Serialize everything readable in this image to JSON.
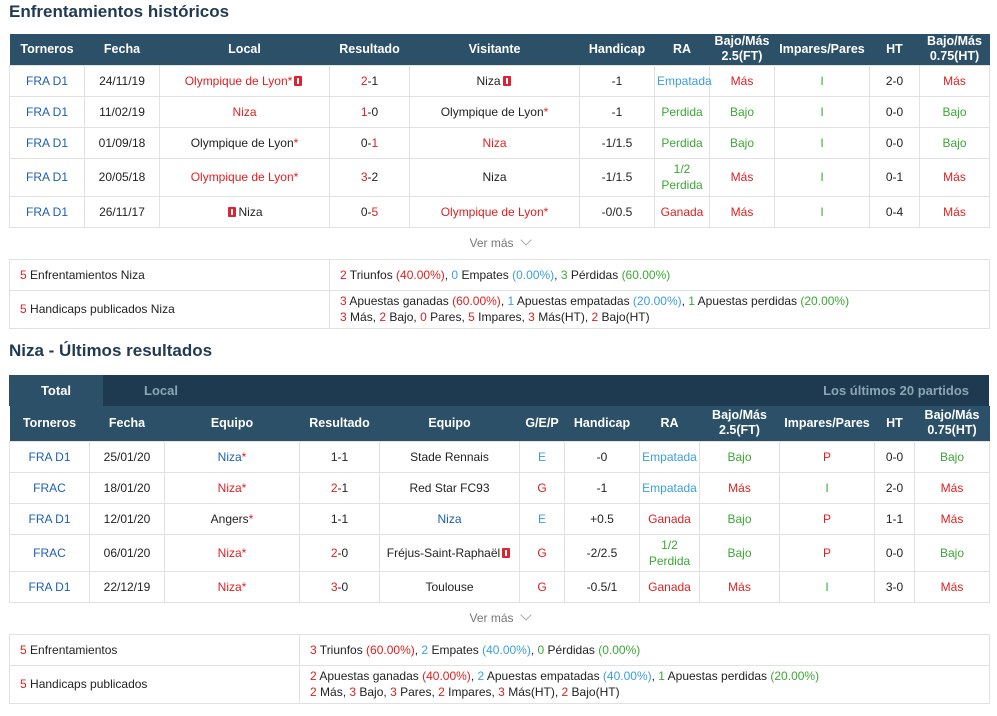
{
  "h2h": {
    "title": "Enfrentamientos históricos",
    "headers": [
      "Torneros",
      "Fecha",
      "Local",
      "Resultado",
      "Visitante",
      "Handicap",
      "RA",
      "Bajo/Más\n2.5(FT)",
      "Impares/Pares",
      "HT",
      "Bajo/Más\n0.75(HT)"
    ],
    "rows": [
      {
        "league": "FRA D1",
        "date": "24/11/19",
        "home": "Olympique de Lyon",
        "home_star": "*",
        "home_flag": true,
        "home_red": true,
        "score_home": "2",
        "score_away": "1",
        "score_red": "home",
        "away": "Niza",
        "away_star": "",
        "away_flag": true,
        "away_red": false,
        "handicap": "-1",
        "ra": "Empatada",
        "ra_color": "lblue",
        "ou": "Más",
        "ou_color": "red",
        "oe": "I",
        "oe_color": "green",
        "ht": "2-0",
        "ou_ht": "Más",
        "ou_ht_color": "red"
      },
      {
        "league": "FRA D1",
        "date": "11/02/19",
        "home": "Niza",
        "home_star": "",
        "home_flag": false,
        "home_red": true,
        "score_home": "1",
        "score_away": "0",
        "score_red": "home",
        "away": "Olympique de Lyon",
        "away_star": "*",
        "away_flag": false,
        "away_red": false,
        "handicap": "-1",
        "ra": "Perdida",
        "ra_color": "green",
        "ou": "Bajo",
        "ou_color": "green",
        "oe": "I",
        "oe_color": "green",
        "ht": "0-0",
        "ou_ht": "Bajo",
        "ou_ht_color": "green"
      },
      {
        "league": "FRA D1",
        "date": "01/09/18",
        "home": "Olympique de Lyon",
        "home_star": "*",
        "home_flag": false,
        "home_red": false,
        "score_home": "0",
        "score_away": "1",
        "score_red": "away",
        "away": "Niza",
        "away_star": "",
        "away_flag": false,
        "away_red": true,
        "handicap": "-1/1.5",
        "ra": "Perdida",
        "ra_color": "green",
        "ou": "Bajo",
        "ou_color": "green",
        "oe": "I",
        "oe_color": "green",
        "ht": "0-0",
        "ou_ht": "Bajo",
        "ou_ht_color": "green"
      },
      {
        "league": "FRA D1",
        "date": "20/05/18",
        "home": "Olympique de Lyon",
        "home_star": "*",
        "home_flag": false,
        "home_red": true,
        "score_home": "3",
        "score_away": "2",
        "score_red": "home",
        "away": "Niza",
        "away_star": "",
        "away_flag": false,
        "away_red": false,
        "handicap": "-1/1.5",
        "ra": "1/2\nPerdida",
        "ra_color": "green",
        "ou": "Más",
        "ou_color": "red",
        "oe": "I",
        "oe_color": "green",
        "ht": "0-1",
        "ou_ht": "Más",
        "ou_ht_color": "red"
      },
      {
        "league": "FRA D1",
        "date": "26/11/17",
        "home": "Niza",
        "home_star": "",
        "home_flag": true,
        "home_flag_before": true,
        "home_red": false,
        "score_home": "0",
        "score_away": "5",
        "score_red": "away",
        "away": "Olympique de Lyon",
        "away_star": "*",
        "away_flag": false,
        "away_red": true,
        "handicap": "-0/0.5",
        "ra": "Ganada",
        "ra_color": "red",
        "ou": "Más",
        "ou_color": "red",
        "oe": "I",
        "oe_color": "green",
        "ht": "0-4",
        "ou_ht": "Más",
        "ou_ht_color": "red"
      }
    ],
    "more_label": "Ver más",
    "summary": [
      {
        "label_num": "5",
        "label": " Enfrentamientos Niza",
        "lines": [
          [
            [
              "2",
              "red"
            ],
            [
              " Triunfos ",
              ""
            ],
            [
              "(40.00%)",
              "red"
            ],
            [
              ", ",
              ""
            ],
            [
              "0",
              "lblue"
            ],
            [
              " Empates ",
              ""
            ],
            [
              "(0.00%)",
              "lblue"
            ],
            [
              ", ",
              ""
            ],
            [
              "3",
              "green"
            ],
            [
              " Pérdidas ",
              ""
            ],
            [
              "(60.00%)",
              "green"
            ]
          ]
        ]
      },
      {
        "label_num": "5",
        "label": " Handicaps publicados Niza",
        "lines": [
          [
            [
              "3",
              "red"
            ],
            [
              " Apuestas ganadas ",
              ""
            ],
            [
              "(60.00%)",
              "red"
            ],
            [
              ", ",
              ""
            ],
            [
              "1",
              "lblue"
            ],
            [
              " Apuestas empatadas ",
              ""
            ],
            [
              "(20.00%)",
              "lblue"
            ],
            [
              ", ",
              ""
            ],
            [
              "1",
              "green"
            ],
            [
              " Apuestas perdidas ",
              ""
            ],
            [
              "(20.00%)",
              "green"
            ]
          ],
          [
            [
              "3",
              "red"
            ],
            [
              " Más, ",
              ""
            ],
            [
              "2",
              "red"
            ],
            [
              " Bajo, ",
              ""
            ],
            [
              "0",
              "red"
            ],
            [
              " Pares, ",
              ""
            ],
            [
              "5",
              "red"
            ],
            [
              " Impares, ",
              ""
            ],
            [
              "3",
              "red"
            ],
            [
              " Más(HT), ",
              ""
            ],
            [
              "2",
              "red"
            ],
            [
              " Bajo(HT)",
              ""
            ]
          ]
        ]
      }
    ]
  },
  "recent": {
    "title": "Niza - Últimos resultados",
    "tabs": {
      "total": "Total",
      "local": "Local",
      "right": "Los últimos 20 partidos"
    },
    "headers": [
      "Torneros",
      "Fecha",
      "Equipo",
      "Resultado",
      "Equipo",
      "G/E/P",
      "Handicap",
      "RA",
      "Bajo/Más\n2.5(FT)",
      "Impares/Pares",
      "HT",
      "Bajo/Más\n0.75(HT)"
    ],
    "rows": [
      {
        "league": "FRA D1",
        "date": "25/01/20",
        "home": "Niza",
        "home_star": "*",
        "home_color": "blue",
        "score_home": "1",
        "score_away": "1",
        "score_red": "",
        "away": "Stade Rennais",
        "away_color": "",
        "away_flag": false,
        "gep": "E",
        "gep_color": "lblue",
        "handicap": "-0",
        "ra": "Empatada",
        "ra_color": "lblue",
        "ou": "Bajo",
        "ou_color": "green",
        "oe": "P",
        "oe_color": "red",
        "ht": "0-0",
        "ou_ht": "Bajo",
        "ou_ht_color": "green"
      },
      {
        "league": "FRAC",
        "date": "18/01/20",
        "home": "Niza",
        "home_star": "*",
        "home_color": "red",
        "score_home": "2",
        "score_away": "1",
        "score_red": "home",
        "away": "Red Star FC93",
        "away_color": "",
        "away_flag": false,
        "gep": "G",
        "gep_color": "red",
        "handicap": "-1",
        "ra": "Empatada",
        "ra_color": "lblue",
        "ou": "Más",
        "ou_color": "red",
        "oe": "I",
        "oe_color": "green",
        "ht": "2-0",
        "ou_ht": "Más",
        "ou_ht_color": "red"
      },
      {
        "league": "FRA D1",
        "date": "12/01/20",
        "home": "Angers",
        "home_star": "*",
        "home_color": "",
        "score_home": "1",
        "score_away": "1",
        "score_red": "",
        "away": "Niza",
        "away_color": "blue",
        "away_flag": false,
        "gep": "E",
        "gep_color": "lblue",
        "handicap": "+0.5",
        "ra": "Ganada",
        "ra_color": "red",
        "ou": "Bajo",
        "ou_color": "green",
        "oe": "P",
        "oe_color": "red",
        "ht": "1-1",
        "ou_ht": "Más",
        "ou_ht_color": "red"
      },
      {
        "league": "FRAC",
        "date": "06/01/20",
        "home": "Niza",
        "home_star": "*",
        "home_color": "red",
        "score_home": "2",
        "score_away": "0",
        "score_red": "home",
        "away": "Fréjus-Saint-Raphaël",
        "away_color": "",
        "away_flag": true,
        "gep": "G",
        "gep_color": "red",
        "handicap": "-2/2.5",
        "ra": "1/2\nPerdida",
        "ra_color": "green",
        "ou": "Bajo",
        "ou_color": "green",
        "oe": "P",
        "oe_color": "red",
        "ht": "0-0",
        "ou_ht": "Bajo",
        "ou_ht_color": "green"
      },
      {
        "league": "FRA D1",
        "date": "22/12/19",
        "home": "Niza",
        "home_star": "*",
        "home_color": "red",
        "score_home": "3",
        "score_away": "0",
        "score_red": "home",
        "away": "Toulouse",
        "away_color": "",
        "away_flag": false,
        "gep": "G",
        "gep_color": "red",
        "handicap": "-0.5/1",
        "ra": "Ganada",
        "ra_color": "red",
        "ou": "Más",
        "ou_color": "red",
        "oe": "I",
        "oe_color": "green",
        "ht": "3-0",
        "ou_ht": "Más",
        "ou_ht_color": "red"
      }
    ],
    "more_label": "Ver más",
    "summary": [
      {
        "label_num": "5",
        "label": " Enfrentamientos",
        "lines": [
          [
            [
              "3",
              "red"
            ],
            [
              " Triunfos ",
              ""
            ],
            [
              "(60.00%)",
              "red"
            ],
            [
              ", ",
              ""
            ],
            [
              "2",
              "lblue"
            ],
            [
              " Empates ",
              ""
            ],
            [
              "(40.00%)",
              "lblue"
            ],
            [
              ", ",
              ""
            ],
            [
              "0",
              "green"
            ],
            [
              " Pérdidas ",
              ""
            ],
            [
              "(0.00%)",
              "green"
            ]
          ]
        ]
      },
      {
        "label_num": "5",
        "label": " Handicaps publicados",
        "lines": [
          [
            [
              "2",
              "red"
            ],
            [
              " Apuestas ganadas ",
              ""
            ],
            [
              "(40.00%)",
              "red"
            ],
            [
              ", ",
              ""
            ],
            [
              "2",
              "lblue"
            ],
            [
              " Apuestas empatadas ",
              ""
            ],
            [
              "(40.00%)",
              "lblue"
            ],
            [
              ", ",
              ""
            ],
            [
              "1",
              "green"
            ],
            [
              " Apuestas perdidas ",
              ""
            ],
            [
              "(20.00%)",
              "green"
            ]
          ],
          [
            [
              "2",
              "red"
            ],
            [
              " Más, ",
              ""
            ],
            [
              "3",
              "red"
            ],
            [
              " Bajo, ",
              ""
            ],
            [
              "3",
              "red"
            ],
            [
              " Pares, ",
              ""
            ],
            [
              "2",
              "red"
            ],
            [
              " Impares, ",
              ""
            ],
            [
              "3",
              "red"
            ],
            [
              " Más(HT), ",
              ""
            ],
            [
              "2",
              "red"
            ],
            [
              " Bajo(HT)",
              ""
            ]
          ]
        ]
      }
    ]
  }
}
